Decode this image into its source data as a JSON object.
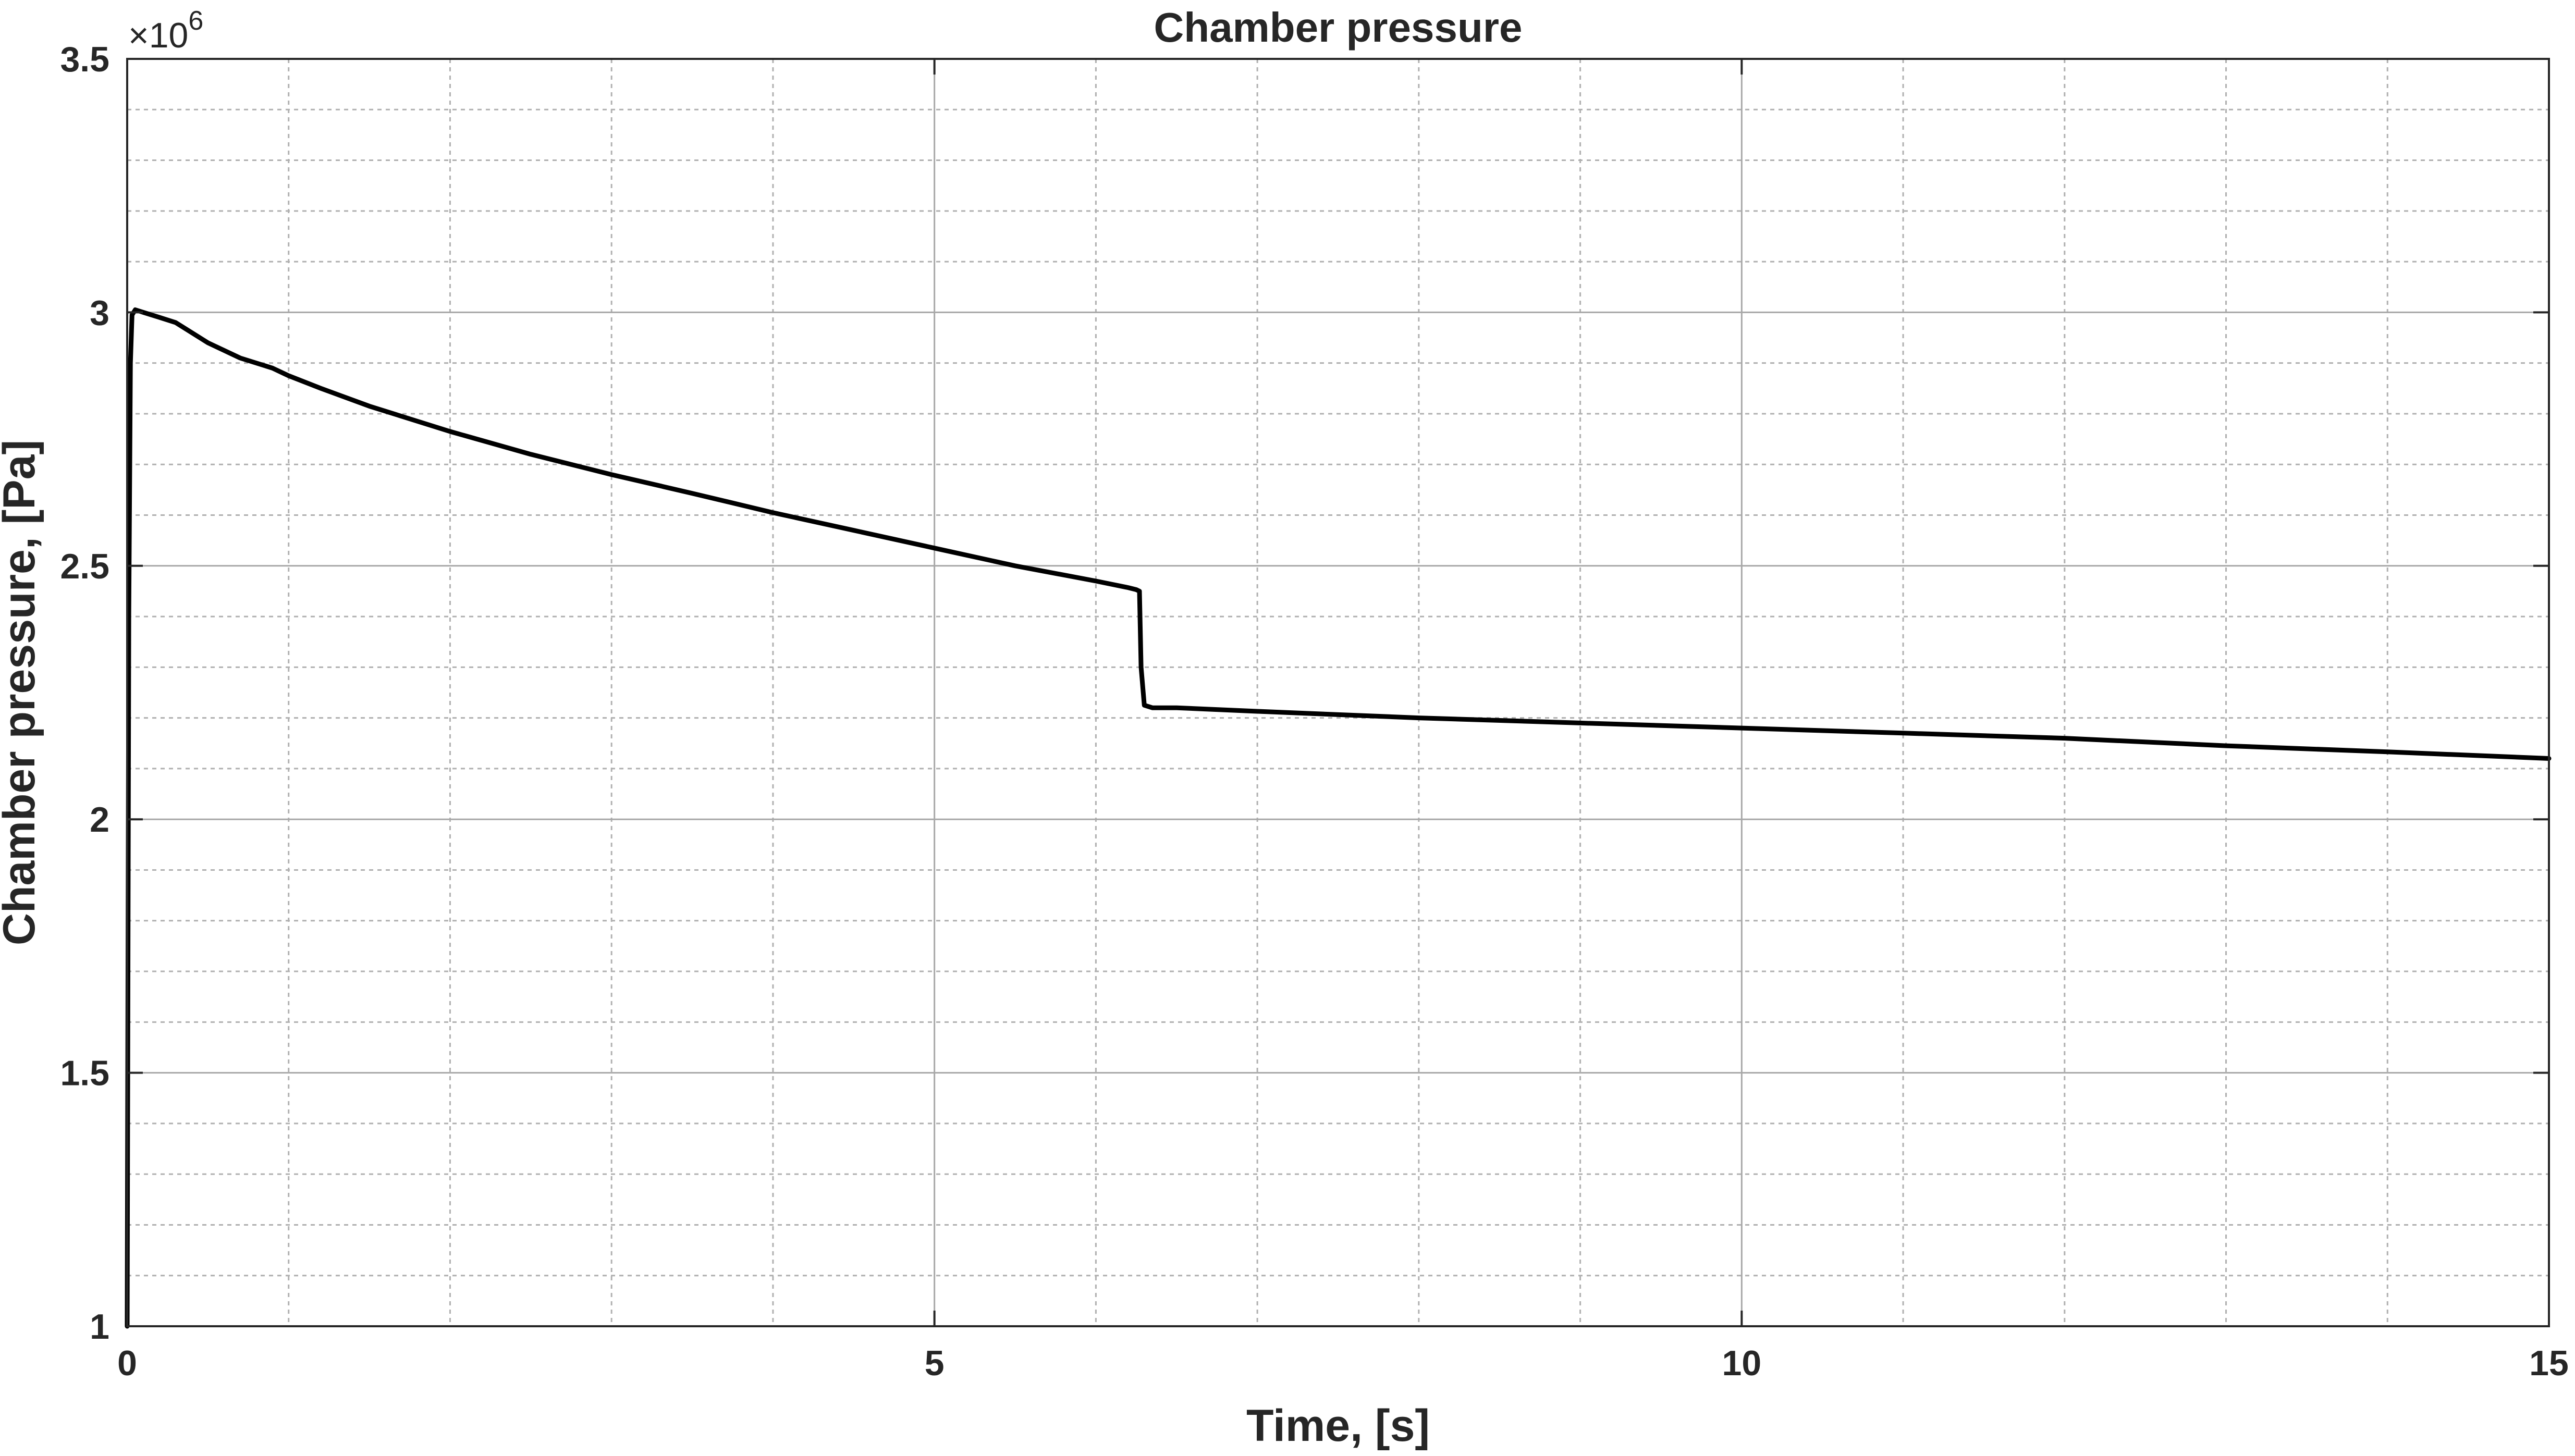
{
  "chart_data": {
    "type": "line",
    "title": "Chamber pressure",
    "xlabel": "Time, [s]",
    "ylabel": "Chamber pressure, [Pa]",
    "y_exponent_label": "×10",
    "y_exponent_power": "6",
    "xlim": [
      0,
      15
    ],
    "ylim": [
      1,
      3.5
    ],
    "x_ticks": [
      0,
      5,
      10,
      15
    ],
    "x_tick_labels": [
      "0",
      "5",
      "10",
      "15"
    ],
    "y_ticks": [
      1,
      1.5,
      2,
      2.5,
      3,
      3.5
    ],
    "y_tick_labels": [
      "1",
      "1.5",
      "2",
      "2.5",
      "3",
      "3.5"
    ],
    "x_minor_step": 1,
    "y_minor_step": 0.1,
    "grid": true,
    "minor_grid": true,
    "line_color": "#000000",
    "grid_color": "#b0b0b0",
    "axis_color": "#262626",
    "series": [
      {
        "x": [
          0,
          0.005,
          0.01,
          0.02,
          0.03,
          0.05,
          0.1,
          0.2,
          0.3,
          0.5,
          0.7,
          0.9,
          1.0,
          1.2,
          1.5,
          2.0,
          2.5,
          3.0,
          3.5,
          4.0,
          4.5,
          5.0,
          5.5,
          6.0,
          6.2,
          6.25,
          6.27,
          6.28,
          6.3,
          6.35,
          6.5,
          7.0,
          8.0,
          9.0,
          10.0,
          11.0,
          12.0,
          13.0,
          14.0,
          15.0
        ],
        "y": [
          1.0,
          1.7,
          2.4,
          2.9,
          2.995,
          3.005,
          3.0,
          2.99,
          2.98,
          2.94,
          2.91,
          2.89,
          2.875,
          2.85,
          2.815,
          2.765,
          2.72,
          2.68,
          2.643,
          2.605,
          2.57,
          2.535,
          2.5,
          2.47,
          2.457,
          2.453,
          2.45,
          2.3,
          2.225,
          2.22,
          2.22,
          2.213,
          2.2,
          2.19,
          2.18,
          2.17,
          2.16,
          2.145,
          2.133,
          2.12
        ]
      }
    ]
  }
}
